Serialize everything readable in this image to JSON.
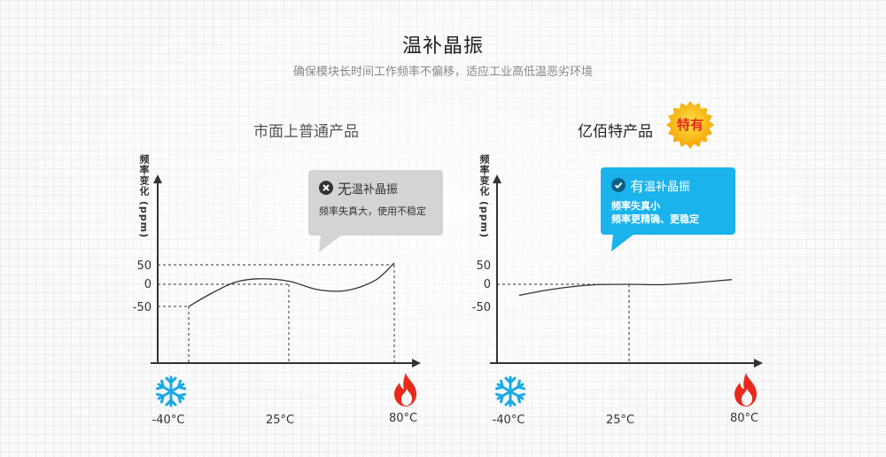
{
  "title": "温补晶振",
  "subtitle": "确保模块长时间工作频率不偏移，适应工业高低温恶劣环境",
  "colors": {
    "accent": "#1ab3ec",
    "flame": "#e8291c",
    "badge": "#f7b500",
    "gray_bubble": "#d4d4d4"
  },
  "left_panel": {
    "title": "市面上普通产品",
    "bubble": {
      "icon": "x-circle-icon",
      "first_char": "无",
      "rest": "温补晶振",
      "line1": "频率失真大，使用不稳定"
    }
  },
  "right_panel": {
    "title": "亿佰特产品",
    "badge": "特有",
    "bubble": {
      "icon": "check-circle-icon",
      "first_char": "有",
      "rest": "温补晶振",
      "line1": "频率失真小",
      "line2": "频率更精确、更稳定"
    }
  },
  "icons": {
    "cold": "snowflake-icon",
    "hot": "flame-icon"
  },
  "chart_data": [
    {
      "type": "line",
      "ylabel": "频率变化 (ppm)",
      "yticks": [
        "50",
        "0",
        "-50"
      ],
      "xticks": [
        "-40°C",
        "25°C",
        "80°C"
      ],
      "x": [
        -40,
        -25,
        -10,
        5,
        25,
        40,
        55,
        70,
        80
      ],
      "values": [
        -50,
        -20,
        5,
        14,
        8,
        -12,
        -14,
        10,
        55
      ],
      "guides": [
        {
          "x": -40,
          "y": -50
        },
        {
          "x": 25,
          "y": 0
        },
        {
          "x": 80,
          "y": 50
        }
      ]
    },
    {
      "type": "line",
      "ylabel": "频率变化 (ppm)",
      "yticks": [
        "50",
        "0",
        "-50"
      ],
      "xticks": [
        "-40°C",
        "25°C",
        "80°C"
      ],
      "x": [
        -40,
        -25,
        -10,
        5,
        25,
        40,
        55,
        70,
        80
      ],
      "values": [
        -25,
        -14,
        -6,
        -1,
        0,
        -1,
        2,
        8,
        12
      ],
      "guides": [
        {
          "x": 25,
          "y": 0
        }
      ]
    }
  ]
}
